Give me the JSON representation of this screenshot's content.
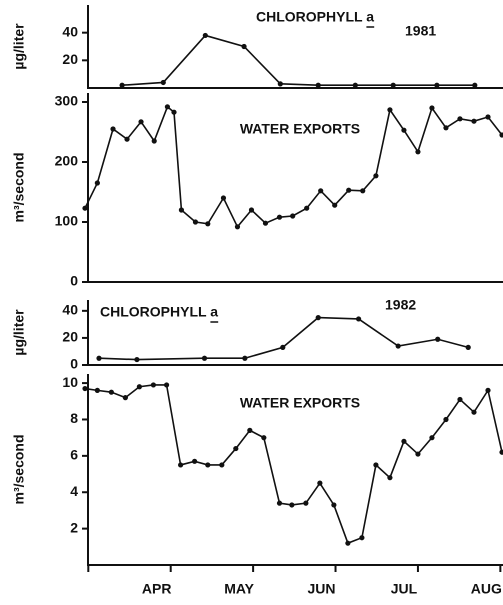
{
  "chart_data": [
    {
      "type": "line",
      "title": "CHLOROPHYLL a",
      "annotation": "1981",
      "ylabel": "µg/liter",
      "x": [
        4.41,
        4.91,
        5.42,
        5.89,
        6.33,
        6.79,
        7.24,
        7.7,
        8.23,
        8.69
      ],
      "values": [
        2,
        4,
        38,
        30,
        3,
        2,
        2,
        2,
        2,
        2
      ],
      "color": "#111111",
      "xlim": [
        3.96,
        9.02
      ],
      "ylim": [
        0,
        60
      ],
      "yticks": [
        20,
        40
      ]
    },
    {
      "type": "line",
      "title": "WATER EXPORTS",
      "ylabel": "m³/second",
      "x": [
        3.96,
        4.11,
        4.3,
        4.47,
        4.64,
        4.8,
        4.96,
        5.04,
        5.13,
        5.3,
        5.45,
        5.64,
        5.81,
        5.98,
        6.15,
        6.32,
        6.48,
        6.65,
        6.82,
        6.99,
        7.16,
        7.33,
        7.49,
        7.66,
        7.83,
        8.0,
        8.17,
        8.34,
        8.51,
        8.68,
        8.85,
        9.02
      ],
      "values": [
        123,
        165,
        255,
        238,
        267,
        235,
        292,
        283,
        120,
        100,
        97,
        140,
        92,
        120,
        98,
        108,
        110,
        123,
        152,
        128,
        153,
        152,
        177,
        287,
        253,
        217,
        290,
        257,
        272,
        268,
        275,
        245
      ],
      "color": "#111111",
      "xlim": [
        3.96,
        9.02
      ],
      "ylim": [
        0,
        315
      ],
      "yticks": [
        0,
        100,
        200,
        300
      ]
    },
    {
      "type": "line",
      "title": "CHLOROPHYLL a",
      "annotation": "1982",
      "ylabel": "µg/liter",
      "x": [
        4.13,
        4.59,
        5.41,
        5.9,
        6.36,
        6.79,
        7.28,
        7.76,
        8.24,
        8.61
      ],
      "values": [
        5,
        4,
        5,
        5,
        13,
        35,
        34,
        14,
        19,
        13
      ],
      "color": "#111111",
      "xlim": [
        3.96,
        9.02
      ],
      "ylim": [
        0,
        48
      ],
      "yticks": [
        0,
        20,
        40
      ]
    },
    {
      "type": "line",
      "title": "WATER EXPORTS",
      "ylabel": "m³/second",
      "categories": [
        "APR",
        "MAY",
        "JUN",
        "JUL",
        "AUG"
      ],
      "x": [
        3.96,
        4.11,
        4.28,
        4.45,
        4.62,
        4.79,
        4.95,
        5.12,
        5.29,
        5.45,
        5.62,
        5.79,
        5.96,
        6.13,
        6.32,
        6.47,
        6.64,
        6.81,
        6.98,
        7.15,
        7.32,
        7.49,
        7.66,
        7.83,
        8.0,
        8.17,
        8.34,
        8.51,
        8.68,
        8.85,
        9.02
      ],
      "values": [
        9.7,
        9.6,
        9.5,
        9.2,
        9.8,
        9.9,
        9.9,
        5.5,
        5.7,
        5.5,
        5.5,
        6.4,
        7.4,
        7.0,
        3.4,
        3.3,
        3.4,
        4.5,
        3.3,
        1.2,
        1.5,
        5.5,
        4.8,
        6.8,
        6.1,
        7.0,
        8.0,
        9.1,
        8.4,
        9.6,
        6.2
      ],
      "color": "#111111",
      "xlim": [
        3.96,
        9.02
      ],
      "ylim": [
        0,
        10.5
      ],
      "yticks": [
        2,
        4,
        6,
        8,
        10
      ]
    }
  ]
}
